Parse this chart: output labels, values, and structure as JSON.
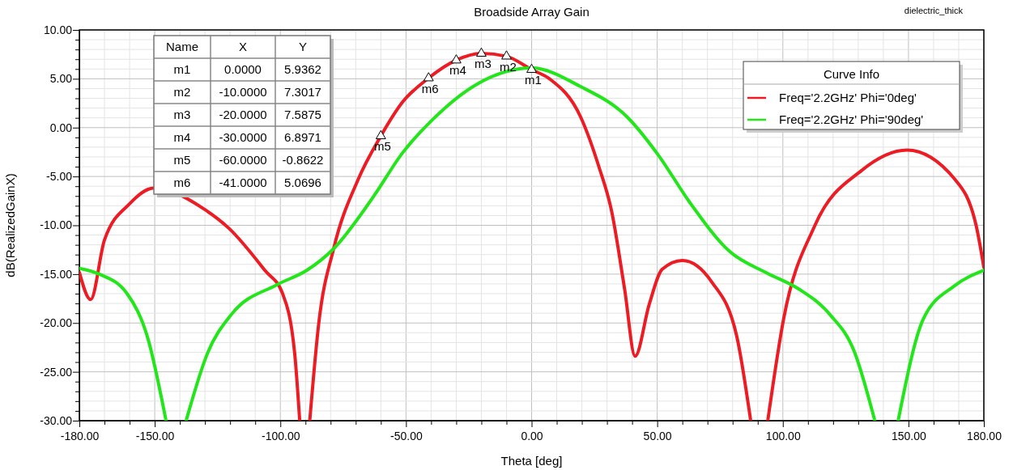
{
  "chart_data": {
    "type": "line",
    "title": "Broadside Array Gain",
    "xlabel": "Theta [deg]",
    "ylabel": "dB(RealizedGainX)",
    "legend_title": "Curve Info",
    "legend": "top right",
    "grid": true,
    "line_style": "solid",
    "marker": "none",
    "xlim": [
      -180,
      180
    ],
    "xticks": [
      {
        "value": -180,
        "label": "-180.00"
      },
      {
        "value": -170,
        "label": null
      },
      {
        "value": -160,
        "label": null
      },
      {
        "value": -150,
        "label": "-150.00"
      },
      {
        "value": -140,
        "label": null
      },
      {
        "value": -130,
        "label": null
      },
      {
        "value": -120,
        "label": null
      },
      {
        "value": -110,
        "label": null
      },
      {
        "value": -100,
        "label": "-100.00"
      },
      {
        "value": -90,
        "label": null
      },
      {
        "value": -80,
        "label": null
      },
      {
        "value": -70,
        "label": null
      },
      {
        "value": -60,
        "label": null
      },
      {
        "value": -50,
        "label": "-50.00"
      },
      {
        "value": -40,
        "label": null
      },
      {
        "value": -30,
        "label": null
      },
      {
        "value": -20,
        "label": null
      },
      {
        "value": -10,
        "label": null
      },
      {
        "value": 0,
        "label": "0.00"
      },
      {
        "value": 10,
        "label": null
      },
      {
        "value": 20,
        "label": null
      },
      {
        "value": 30,
        "label": null
      },
      {
        "value": 40,
        "label": null
      },
      {
        "value": 50,
        "label": "50.00"
      },
      {
        "value": 60,
        "label": null
      },
      {
        "value": 70,
        "label": null
      },
      {
        "value": 80,
        "label": null
      },
      {
        "value": 90,
        "label": null
      },
      {
        "value": 100,
        "label": "100.00"
      },
      {
        "value": 110,
        "label": null
      },
      {
        "value": 120,
        "label": null
      },
      {
        "value": 130,
        "label": null
      },
      {
        "value": 140,
        "label": null
      },
      {
        "value": 150,
        "label": "150.00"
      },
      {
        "value": 160,
        "label": null
      },
      {
        "value": 170,
        "label": null
      },
      {
        "value": 180,
        "label": "180.00"
      }
    ],
    "ylim": [
      -30,
      10
    ],
    "yticks": [
      {
        "value": -30,
        "label": "-30.00"
      },
      {
        "value": -29,
        "label": null
      },
      {
        "value": -28,
        "label": null
      },
      {
        "value": -27,
        "label": null
      },
      {
        "value": -26,
        "label": null
      },
      {
        "value": -25,
        "label": "-25.00"
      },
      {
        "value": -24,
        "label": null
      },
      {
        "value": -23,
        "label": null
      },
      {
        "value": -22,
        "label": null
      },
      {
        "value": -21,
        "label": null
      },
      {
        "value": -20,
        "label": "-20.00"
      },
      {
        "value": -19,
        "label": null
      },
      {
        "value": -18,
        "label": null
      },
      {
        "value": -17,
        "label": null
      },
      {
        "value": -16,
        "label": null
      },
      {
        "value": -15,
        "label": "-15.00"
      },
      {
        "value": -14,
        "label": null
      },
      {
        "value": -13,
        "label": null
      },
      {
        "value": -12,
        "label": null
      },
      {
        "value": -11,
        "label": null
      },
      {
        "value": -10,
        "label": "-10.00"
      },
      {
        "value": -9,
        "label": null
      },
      {
        "value": -8,
        "label": null
      },
      {
        "value": -7,
        "label": null
      },
      {
        "value": -6,
        "label": null
      },
      {
        "value": -5,
        "label": "-5.00"
      },
      {
        "value": -4,
        "label": null
      },
      {
        "value": -3,
        "label": null
      },
      {
        "value": -2,
        "label": null
      },
      {
        "value": -1,
        "label": null
      },
      {
        "value": 0,
        "label": "0.00"
      },
      {
        "value": 1,
        "label": null
      },
      {
        "value": 2,
        "label": null
      },
      {
        "value": 3,
        "label": null
      },
      {
        "value": 4,
        "label": null
      },
      {
        "value": 5,
        "label": "5.00"
      },
      {
        "value": 6,
        "label": null
      },
      {
        "value": 7,
        "label": null
      },
      {
        "value": 8,
        "label": null
      },
      {
        "value": 9,
        "label": null
      },
      {
        "value": 10,
        "label": "10.00"
      }
    ],
    "series": [
      {
        "name": "Freq='2.2GHz' Phi='0deg'",
        "color": "#ed1c24",
        "x": [
          -180,
          -175.5,
          -170,
          -160,
          -150.4,
          -130,
          -120.5,
          -106.2,
          -99.1,
          -94.3,
          -92.3,
          -90,
          -88.3,
          -84.7,
          -78.8,
          -69.2,
          -60,
          -51.4,
          -41,
          -30,
          -20,
          -10,
          0,
          7.1,
          19.5,
          26.9,
          31.8,
          37,
          41.2,
          46.8,
          52,
          60,
          71.7,
          81.6,
          87.2,
          90.5,
          94,
          100.3,
          112.6,
          131.3,
          149.4,
          168.5,
          177,
          180
        ],
        "values": [
          -14.8,
          -17.6,
          -11.5,
          -7.8,
          -6.2,
          -8.4,
          -10.3,
          -14.6,
          -17,
          -23.1,
          -30,
          null,
          -30,
          -20,
          -12.4,
          -5.4,
          -0.86,
          2.6,
          5.07,
          6.9,
          7.59,
          7.3,
          5.94,
          5.0,
          1.1,
          -4.1,
          -8.5,
          -16.5,
          -23.4,
          -18.1,
          -14.5,
          -13.6,
          -15.8,
          -21.3,
          -30,
          null,
          -30,
          -19.6,
          -10.1,
          -4.4,
          -2.3,
          -5.3,
          -10.1,
          -14.3
        ]
      },
      {
        "name": "Freq='2.2GHz' Phi='90deg'",
        "color": "#22e61a",
        "x": [
          -180,
          -172,
          -161,
          -152.7,
          -145.5,
          -141.5,
          -137.5,
          -129,
          -119.4,
          -101.5,
          -89.4,
          -78.8,
          -63.3,
          -51.4,
          -39.5,
          -21.4,
          0,
          19.5,
          38,
          50.4,
          62.8,
          78.9,
          93.8,
          106.2,
          118.6,
          128.4,
          136.6,
          141,
          145.9,
          155.9,
          168.3,
          180
        ],
        "values": [
          -14.4,
          -15,
          -17,
          -21.6,
          -30,
          null,
          -30,
          -23.1,
          -19.1,
          -16.1,
          -14.6,
          -12.4,
          -7.2,
          -2.6,
          0.8,
          4.5,
          6.1,
          4.2,
          1.1,
          -2.8,
          -7.6,
          -12.7,
          -14.9,
          -16.5,
          -19.1,
          -22.9,
          -30,
          null,
          -30,
          -19.6,
          -16.2,
          -14.6
        ]
      },
      {
        "type": "scatter",
        "marker": "triangle",
        "color": "#000000",
        "x": [
          0,
          -10,
          -20,
          -30,
          -60,
          -41
        ],
        "values": [
          5.9362,
          7.3017,
          7.5875,
          6.8971,
          -0.8622,
          5.0696
        ]
      }
    ],
    "annotations": [
      "dielectric_thick",
      {
        "text": "m1",
        "x": 0,
        "y": 5.9362
      },
      {
        "text": "m2",
        "x": -10,
        "y": 7.3017
      },
      {
        "text": "m3",
        "x": -20,
        "y": 7.5875
      },
      {
        "text": "m4",
        "x": -30,
        "y": 6.8971
      },
      {
        "text": "m5",
        "x": -60,
        "y": -0.8622
      },
      {
        "text": "m6",
        "x": -41,
        "y": 5.0696
      },
      "Name",
      "X",
      "Y",
      "m1",
      "0.0000",
      "5.9362",
      "m2",
      "-10.0000",
      "7.3017",
      "m3",
      "-20.0000",
      "7.5875",
      "m4",
      "-30.0000",
      "6.8971",
      "m5",
      "-60.0000",
      "-0.8622",
      "m6",
      "-41.0000",
      "5.0696"
    ]
  }
}
